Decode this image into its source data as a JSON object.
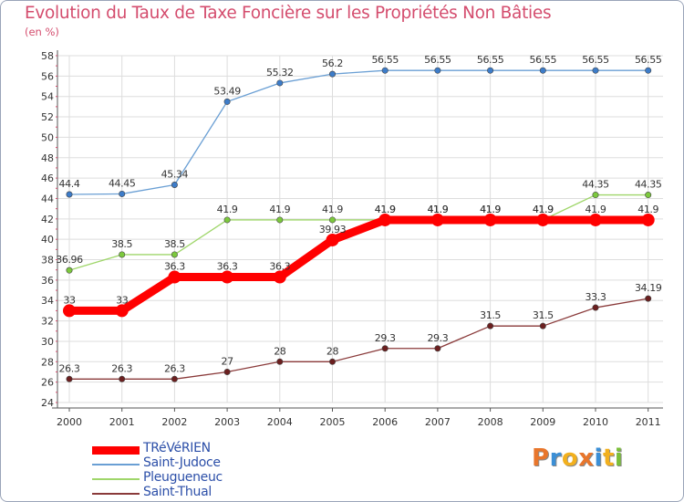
{
  "title": "Evolution du Taux de Taxe Foncière sur les Propriétés Non Bâties",
  "subtitle": "(en %)",
  "logo": {
    "text": "Proxiti",
    "colors": [
      "#e8762c",
      "#3b8fd6",
      "#f2b01e",
      "#e8762c",
      "#3b8fd6",
      "#f2b01e",
      "#7bbf3a"
    ]
  },
  "chart_data": {
    "type": "line",
    "title": "Evolution du Taux de Taxe Foncière sur les Propriétés Non Bâties",
    "ylabel": "(en %)",
    "xlabel": "",
    "x": [
      "2000",
      "2001",
      "2002",
      "2003",
      "2004",
      "2005",
      "2006",
      "2007",
      "2008",
      "2009",
      "2010",
      "2011"
    ],
    "ylim": [
      24,
      58
    ],
    "yticks": [
      24,
      26,
      28,
      30,
      32,
      34,
      36,
      38,
      40,
      42,
      44,
      46,
      48,
      50,
      52,
      54,
      56,
      58
    ],
    "grid": true,
    "legend_position": "bottom-left",
    "series": [
      {
        "name": "TRéVéRIEN",
        "color": "#ff0000",
        "marker_color": "#ff0000",
        "width": "thick",
        "values": [
          33,
          33,
          36.3,
          36.3,
          36.3,
          39.93,
          41.9,
          41.9,
          41.9,
          41.9,
          41.9,
          41.9
        ],
        "labels": [
          "33",
          "33",
          "36.3",
          "36.3",
          "36.3",
          "39.93",
          "41.9",
          "41.9",
          "41.9",
          "41.9",
          "41.9",
          "41.9"
        ]
      },
      {
        "name": "Saint-Judoce",
        "color": "#6a9fd4",
        "marker_color": "#3d7cc9",
        "width": "thin",
        "values": [
          44.4,
          44.45,
          45.34,
          53.49,
          55.32,
          56.2,
          56.55,
          56.55,
          56.55,
          56.55,
          56.55,
          56.55
        ],
        "labels": [
          "44.4",
          "44.45",
          "45.34",
          "53.49",
          "55.32",
          "56.2",
          "56.55",
          "56.55",
          "56.55",
          "56.55",
          "56.55",
          "56.55"
        ]
      },
      {
        "name": "Pleugueneuc",
        "color": "#9fd66a",
        "marker_color": "#7cc93d",
        "width": "thin",
        "values": [
          36.96,
          38.5,
          38.5,
          41.9,
          41.9,
          41.9,
          41.9,
          41.9,
          41.9,
          41.9,
          44.35,
          44.35
        ],
        "labels": [
          "36.96",
          "38.5",
          "38.5",
          "41.9",
          "41.9",
          "41.9",
          "41.9",
          "41.9",
          "41.9",
          "41.9",
          "44.35",
          "44.35"
        ]
      },
      {
        "name": "Saint-Thual",
        "color": "#8a3a3a",
        "marker_color": "#6b1f1f",
        "width": "thin",
        "values": [
          26.3,
          26.3,
          26.3,
          27,
          28,
          28,
          29.3,
          29.3,
          31.5,
          31.5,
          33.3,
          34.19
        ],
        "labels": [
          "26.3",
          "26.3",
          "26.3",
          "27",
          "28",
          "28",
          "29.3",
          "29.3",
          "31.5",
          "31.5",
          "33.3",
          "34.19"
        ]
      }
    ]
  }
}
